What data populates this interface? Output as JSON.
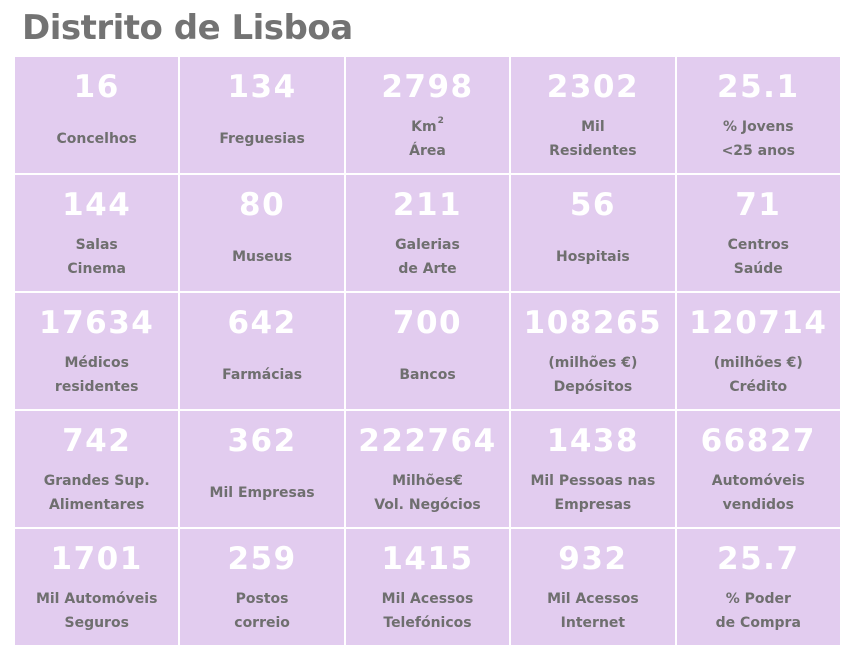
{
  "title": "Distrito de Lisboa",
  "cells": [
    {
      "value": "16",
      "lines": [
        "Concelhos"
      ]
    },
    {
      "value": "134",
      "lines": [
        "Freguesias"
      ]
    },
    {
      "value": "2798",
      "lines": [
        "Km",
        "Área"
      ],
      "unit_sup": "2"
    },
    {
      "value": "2302",
      "lines": [
        "Mil",
        "Residentes"
      ]
    },
    {
      "value": "25.1",
      "lines": [
        "% Jovens",
        "<25 anos"
      ]
    },
    {
      "value": "144",
      "lines": [
        "Salas",
        "Cinema"
      ]
    },
    {
      "value": "80",
      "lines": [
        "Museus"
      ]
    },
    {
      "value": "211",
      "lines": [
        "Galerias",
        "de Arte"
      ]
    },
    {
      "value": "56",
      "lines": [
        "Hospitais"
      ]
    },
    {
      "value": "71",
      "lines": [
        "Centros",
        "Saúde"
      ]
    },
    {
      "value": "17634",
      "lines": [
        "Médicos",
        "residentes"
      ]
    },
    {
      "value": "642",
      "lines": [
        "Farmácias"
      ]
    },
    {
      "value": "700",
      "lines": [
        "Bancos"
      ]
    },
    {
      "value": "108265",
      "lines": [
        "(milhões €)",
        "Depósitos"
      ]
    },
    {
      "value": "120714",
      "lines": [
        "(milhões €)",
        "Crédito"
      ]
    },
    {
      "value": "742",
      "lines": [
        "Grandes Sup.",
        "Alimentares"
      ]
    },
    {
      "value": "362",
      "lines": [
        "Mil Empresas"
      ]
    },
    {
      "value": "222764",
      "lines": [
        "Milhões€",
        "Vol. Negócios"
      ]
    },
    {
      "value": "1438",
      "lines": [
        "Mil Pessoas nas",
        "Empresas"
      ]
    },
    {
      "value": "66827",
      "lines": [
        "Automóveis",
        "vendidos"
      ]
    },
    {
      "value": "1701",
      "lines": [
        "Mil Automóveis",
        "Seguros"
      ]
    },
    {
      "value": "259",
      "lines": [
        "Postos",
        "correio"
      ]
    },
    {
      "value": "1415",
      "lines": [
        "Mil Acessos",
        "Telefónicos"
      ]
    },
    {
      "value": "932",
      "lines": [
        "Mil Acessos",
        "Internet"
      ]
    },
    {
      "value": "25.7",
      "lines": [
        "% Poder",
        "de Compra"
      ]
    }
  ]
}
